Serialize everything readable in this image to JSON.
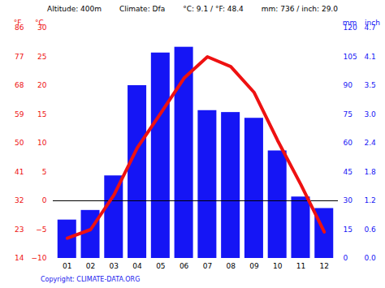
{
  "chart_data": {
    "type": "bar",
    "header": [
      "Altitude: 400m",
      "Climate: Dfa",
      "°C: 9.1 / °F: 48.4",
      "mm: 736 / inch: 29.0"
    ],
    "copyright": "Copyright: CLIMATE-DATA.ORG",
    "categories": [
      "01",
      "02",
      "03",
      "04",
      "05",
      "06",
      "07",
      "08",
      "09",
      "10",
      "11",
      "12"
    ],
    "series": [
      {
        "name": "mm",
        "type": "bar",
        "axis": "y2",
        "color": "#1515f5",
        "values": [
          20,
          25,
          43,
          90,
          107,
          110,
          77,
          76,
          73,
          56,
          32,
          26
        ]
      },
      {
        "name": "°C",
        "type": "line",
        "color": "#ee1111",
        "values": [
          -6.5,
          -5.0,
          1.0,
          9.2,
          15.2,
          21.3,
          25.0,
          23.3,
          18.8,
          10.5,
          2.8,
          -5.4
        ]
      }
    ],
    "ylim": [
      -10,
      30
    ],
    "yticks": [
      -10,
      -5,
      0,
      5,
      10,
      15,
      20,
      25,
      30
    ],
    "y2lim": [
      0,
      120
    ],
    "y2ticks": [
      0,
      15,
      30,
      45,
      60,
      75,
      90,
      105,
      120
    ],
    "f_label": "°F",
    "fahrenheit_ticks": [
      {
        "value": -10,
        "label": "14"
      },
      {
        "value": -5,
        "label": "23"
      },
      {
        "value": 0,
        "label": "32"
      },
      {
        "value": 5,
        "label": "41"
      },
      {
        "value": 10,
        "label": "50"
      },
      {
        "value": 15,
        "label": "59"
      },
      {
        "value": 20,
        "label": "68"
      },
      {
        "value": 25,
        "label": "77"
      },
      {
        "value": 30,
        "label": "86"
      }
    ],
    "inch_label": "inch",
    "inch_ticks": [
      {
        "value": 0,
        "label": "0.0"
      },
      {
        "value": 15,
        "label": "0.6"
      },
      {
        "value": 30,
        "label": "1.2"
      },
      {
        "value": 45,
        "label": "1.8"
      },
      {
        "value": 60,
        "label": "2.4"
      },
      {
        "value": 75,
        "label": "3.0"
      },
      {
        "value": 90,
        "label": "3.5"
      },
      {
        "value": 105,
        "label": "4.1"
      },
      {
        "value": 120,
        "label": "4.7"
      }
    ],
    "rules": [
      0
    ],
    "grid": false
  }
}
